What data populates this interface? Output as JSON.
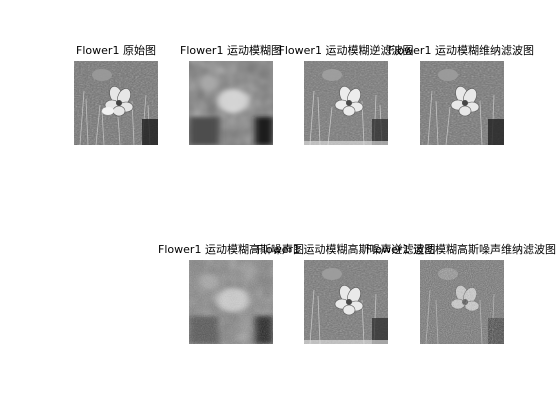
{
  "figure": {
    "background": "#ffffff",
    "panels": [
      {
        "id": "p1",
        "title": "Flower1 原始图",
        "style": "sharp"
      },
      {
        "id": "p2",
        "title": "Flower1 运动模糊图",
        "style": "blur"
      },
      {
        "id": "p3",
        "title": "Flower1 运动模糊逆滤波图",
        "style": "sharp-restored"
      },
      {
        "id": "p4",
        "title": "Flower1 运动模糊维纳滤波图",
        "style": "sharp-restored"
      },
      {
        "id": "p5",
        "title": "Flower1 运动模糊高斯噪声图",
        "style": "blur-noise"
      },
      {
        "id": "p6",
        "title": "Flower1 运动模糊高斯噪声逆滤波图",
        "style": "sharp-restored"
      },
      {
        "id": "p7",
        "title": "Flower1 运动模糊高斯噪声维纳滤波图",
        "style": "noisy-restored"
      }
    ]
  }
}
